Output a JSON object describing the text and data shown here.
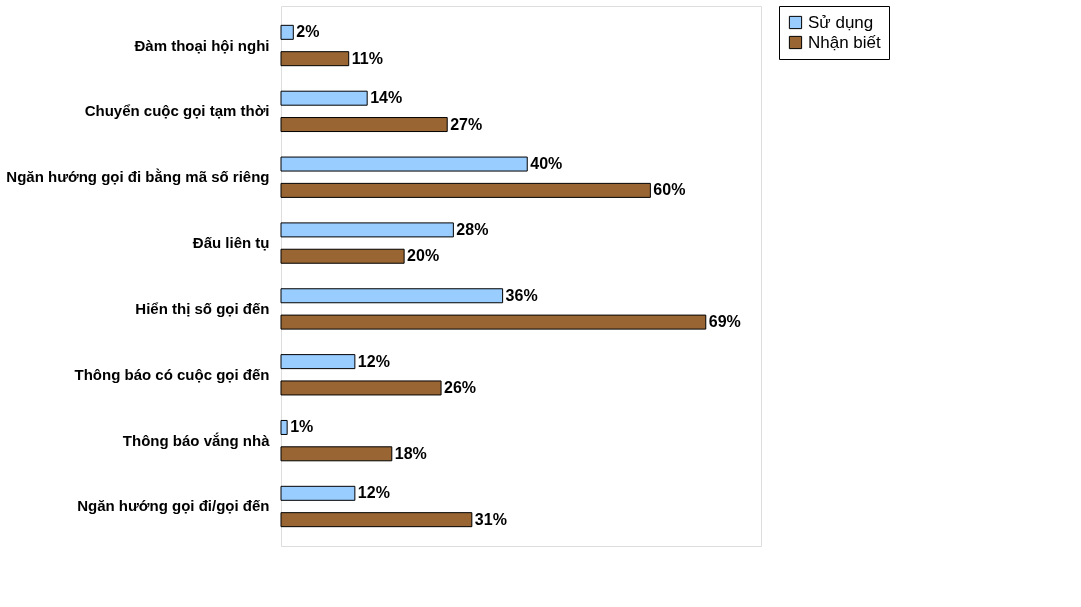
{
  "chart_data": {
    "type": "bar",
    "orientation": "horizontal",
    "categories": [
      "Đàm thoại hội nghi",
      "Chuyển cuộc gọi tạm thời",
      "Ngăn hướng gọi đi bằng mã số riêng",
      "Đấu liên tụ",
      "Hiển thị số gọi đến",
      "Thông báo có cuộc gọi đến",
      "Thông báo vắng nhà",
      "Ngăn hướng gọi đi/gọi đến"
    ],
    "series": [
      {
        "name": "Sử dụng",
        "color": "#99ccff",
        "values": [
          2,
          14,
          40,
          28,
          36,
          12,
          1,
          12
        ],
        "value_labels": [
          "2%",
          "14%",
          "40%",
          "28%",
          "36%",
          "12%",
          "1%",
          "12%"
        ]
      },
      {
        "name": "Nhận biết",
        "color": "#996633",
        "values": [
          11,
          27,
          60,
          20,
          69,
          26,
          18,
          31
        ],
        "value_labels": [
          "11%",
          "27%",
          "60%",
          "20%",
          "69%",
          "26%",
          "18%",
          "31%"
        ]
      }
    ],
    "legend": "right",
    "grid": false
  }
}
